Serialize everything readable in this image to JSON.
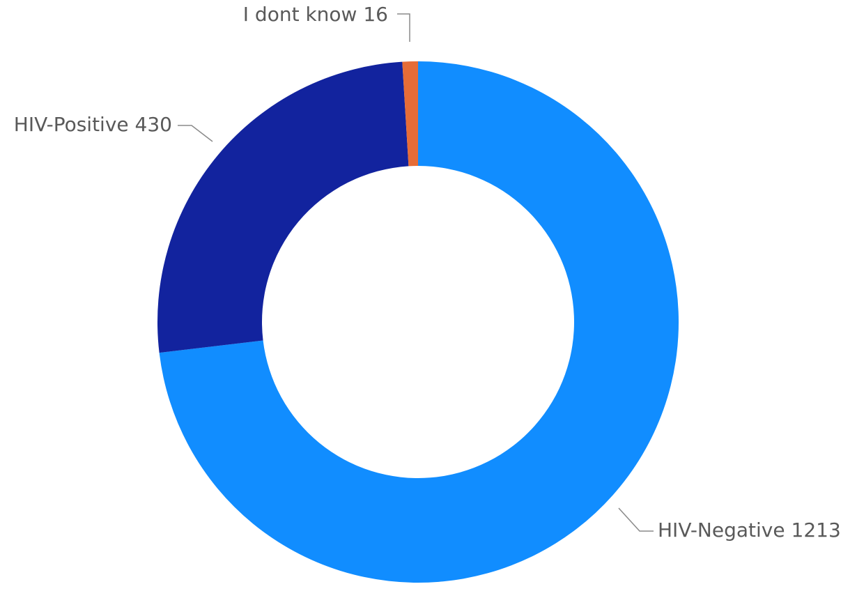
{
  "chart_data": {
    "type": "pie",
    "variant": "donut",
    "title": "",
    "slices": [
      {
        "label": "HIV-Negative",
        "value": 1213,
        "color": "#118DFF",
        "label_position": "bottom-right"
      },
      {
        "label": "HIV-Positive",
        "value": 430,
        "color": "#12239E",
        "label_position": "left"
      },
      {
        "label": "I dont know",
        "value": 16,
        "color": "#E66C37",
        "label_position": "top"
      }
    ],
    "legend": "none",
    "background": "#FFFFFF"
  }
}
